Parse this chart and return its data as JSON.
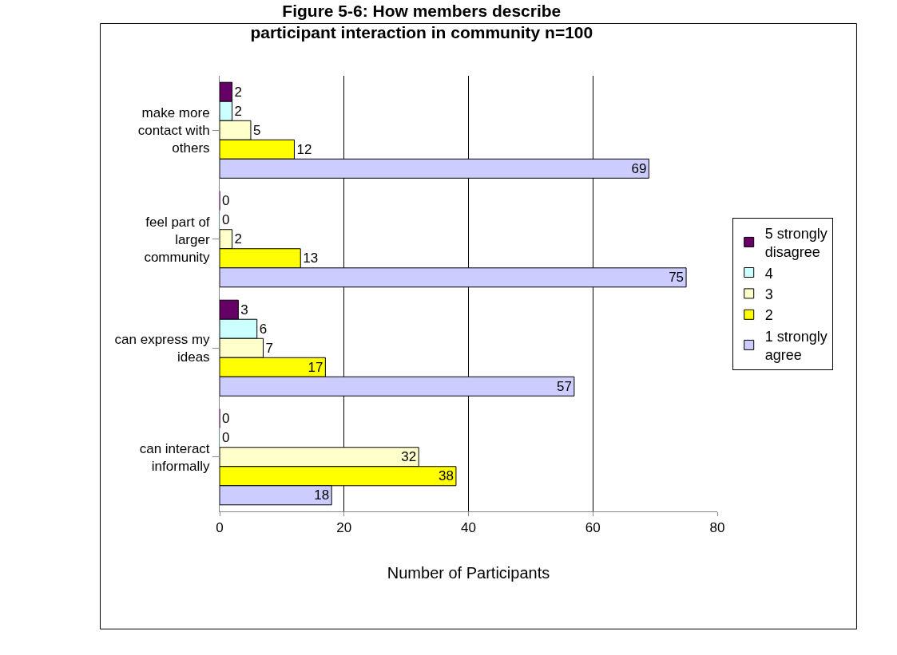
{
  "chart_data": {
    "type": "bar",
    "orientation": "horizontal",
    "title": "Figure 5-6: How members describe participant interaction in community n=100",
    "xlabel": "Number of Participants",
    "categories": [
      "make more contact with others",
      "feel part of larger community",
      "can express my ideas",
      "can interact informally"
    ],
    "series": [
      {
        "name": "5 strongly disagree",
        "color": "#660066",
        "values": [
          2,
          0,
          3,
          0
        ]
      },
      {
        "name": "4",
        "color": "#ccffff",
        "values": [
          2,
          0,
          6,
          0
        ]
      },
      {
        "name": "3",
        "color": "#ffffcc",
        "values": [
          5,
          2,
          7,
          32
        ]
      },
      {
        "name": "2",
        "color": "#ffff00",
        "values": [
          12,
          13,
          17,
          38
        ]
      },
      {
        "name": "1 strongly agree",
        "color": "#ccccff",
        "values": [
          69,
          75,
          57,
          18
        ]
      }
    ],
    "xlim": [
      0,
      80
    ],
    "xticks": [
      0,
      20,
      40,
      60,
      80
    ],
    "grid": "x",
    "legend": "right",
    "data_labels": true
  }
}
